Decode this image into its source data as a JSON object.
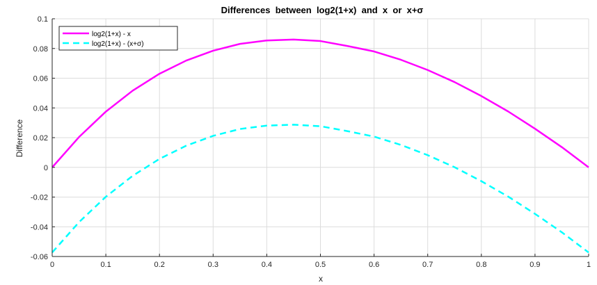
{
  "chart_data": {
    "type": "line",
    "title": "Differences  between  log2(1+x)  and  x  or  x+σ",
    "xlabel": "x",
    "ylabel": "Difference",
    "xlim": [
      0,
      1
    ],
    "ylim": [
      -0.06,
      0.1
    ],
    "xticks": [
      "0",
      "0.1",
      "0.2",
      "0.3",
      "0.4",
      "0.5",
      "0.6",
      "0.7",
      "0.8",
      "0.9",
      "1"
    ],
    "yticks": [
      "-0.06",
      "-0.04",
      "-0.02",
      "0",
      "0.02",
      "0.04",
      "0.06",
      "0.08",
      "0.1"
    ],
    "grid": true,
    "legend_position": "top-left",
    "x": [
      0,
      0.05,
      0.1,
      0.15,
      0.2,
      0.25,
      0.3,
      0.35,
      0.4,
      0.45,
      0.5,
      0.55,
      0.6,
      0.65,
      0.7,
      0.75,
      0.8,
      0.85,
      0.9,
      0.95,
      1
    ],
    "series": [
      {
        "name": "log2(1+x) - x",
        "color": "#ff00ff",
        "style": "solid",
        "values": [
          0,
          0.0204,
          0.0375,
          0.0516,
          0.063,
          0.0719,
          0.0785,
          0.0831,
          0.0854,
          0.086,
          0.085,
          0.0817,
          0.078,
          0.0724,
          0.0655,
          0.0574,
          0.048,
          0.0376,
          0.026,
          0.0136,
          0
        ]
      },
      {
        "name": "log2(1+x) -  (x+σ)",
        "color": "#00ffff",
        "style": "dashed",
        "values": [
          -0.0573,
          -0.0369,
          -0.0198,
          -0.0057,
          0.0057,
          0.0146,
          0.0212,
          0.0258,
          0.0281,
          0.0287,
          0.0277,
          0.0244,
          0.0207,
          0.0151,
          0.0082,
          0.0001,
          -0.0093,
          -0.0197,
          -0.0313,
          -0.0437,
          -0.0573
        ]
      }
    ]
  }
}
